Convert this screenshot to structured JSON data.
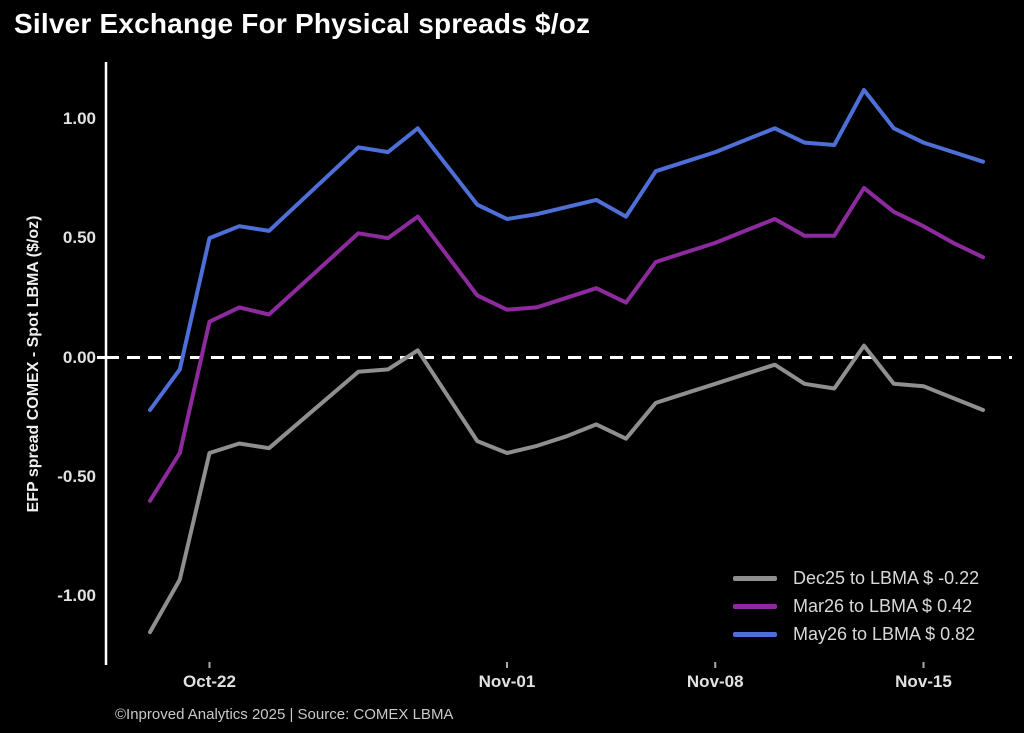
{
  "title": "Silver Exchange For Physical spreads $/oz",
  "footer": "©Inproved Analytics 2025 | Source: COMEX LBMA",
  "colors": {
    "background": "#000000",
    "axis": "#ffffff",
    "zero_line": "#ffffff",
    "tick_text": "#e2e2e2",
    "legend_text": "#d9d9d9",
    "dec25": "#8f8f8f",
    "mar26": "#8d2a9e",
    "may26": "#4f6fd8"
  },
  "chart_data": {
    "type": "line",
    "title": "Silver Exchange For Physical spreads $/oz",
    "xlabel": "",
    "ylabel": "EFP spread COMEX - Spot LBMA ($/oz)",
    "grid": false,
    "zero_line_dashed": true,
    "legend_position": "lower right",
    "ylim": [
      -1.29,
      1.24
    ],
    "y_ticks": [
      {
        "value": 1.0,
        "label": "1.00"
      },
      {
        "value": 0.5,
        "label": "0.50"
      },
      {
        "value": 0.0,
        "label": "0.00"
      },
      {
        "value": -0.5,
        "label": "-0.50"
      },
      {
        "value": -1.0,
        "label": "-1.00"
      }
    ],
    "x_ticks": [
      {
        "day": 2,
        "label": "Oct-22"
      },
      {
        "day": 12,
        "label": "Nov-01"
      },
      {
        "day": 19,
        "label": "Nov-08"
      },
      {
        "day": 26,
        "label": "Nov-15"
      }
    ],
    "x_dates": [
      "Oct-20",
      "Oct-21",
      "Oct-22",
      "Oct-23",
      "Oct-24",
      "Oct-27",
      "Oct-28",
      "Oct-29",
      "Oct-31",
      "Nov-01",
      "Nov-02",
      "Nov-03",
      "Nov-04",
      "Nov-05",
      "Nov-06",
      "Nov-07",
      "Nov-08",
      "Nov-09",
      "Nov-10",
      "Nov-11",
      "Nov-12",
      "Nov-13",
      "Nov-14",
      "Nov-15",
      "Nov-16",
      "Nov-17"
    ],
    "x_day_offsets": [
      0,
      1,
      2,
      3,
      4,
      7,
      8,
      9,
      11,
      12,
      13,
      14,
      15,
      16,
      17,
      18,
      19,
      20,
      21,
      22,
      23,
      24,
      25,
      26,
      27,
      28
    ],
    "series": [
      {
        "id": "dec25",
        "name": "Dec25 to LBMA",
        "legend_label": "Dec25 to LBMA $ -0.22",
        "last_value": -0.22,
        "color": "#8f8f8f",
        "values": [
          -1.15,
          -0.93,
          -0.4,
          -0.36,
          -0.38,
          -0.06,
          -0.05,
          0.03,
          -0.35,
          -0.4,
          -0.37,
          -0.33,
          -0.28,
          -0.34,
          -0.19,
          -0.15,
          -0.11,
          -0.07,
          -0.03,
          -0.11,
          -0.13,
          0.05,
          -0.11,
          -0.12,
          -0.17,
          -0.22
        ]
      },
      {
        "id": "mar26",
        "name": "Mar26 to LBMA",
        "legend_label": "Mar26 to LBMA $ 0.42",
        "last_value": 0.42,
        "color": "#8d2a9e",
        "values": [
          -0.6,
          -0.4,
          0.15,
          0.21,
          0.18,
          0.52,
          0.5,
          0.59,
          0.26,
          0.2,
          0.21,
          0.25,
          0.29,
          0.23,
          0.4,
          0.44,
          0.48,
          0.53,
          0.58,
          0.51,
          0.51,
          0.71,
          0.61,
          0.55,
          0.48,
          0.42
        ]
      },
      {
        "id": "may26",
        "name": "May26 to LBMA",
        "legend_label": "May26 to LBMA $ 0.82",
        "last_value": 0.82,
        "color": "#4f6fd8",
        "values": [
          -0.22,
          -0.05,
          0.5,
          0.55,
          0.53,
          0.88,
          0.86,
          0.96,
          0.64,
          0.58,
          0.6,
          0.63,
          0.66,
          0.59,
          0.78,
          0.82,
          0.86,
          0.91,
          0.96,
          0.9,
          0.89,
          1.12,
          0.96,
          0.9,
          0.86,
          0.82
        ]
      }
    ]
  }
}
